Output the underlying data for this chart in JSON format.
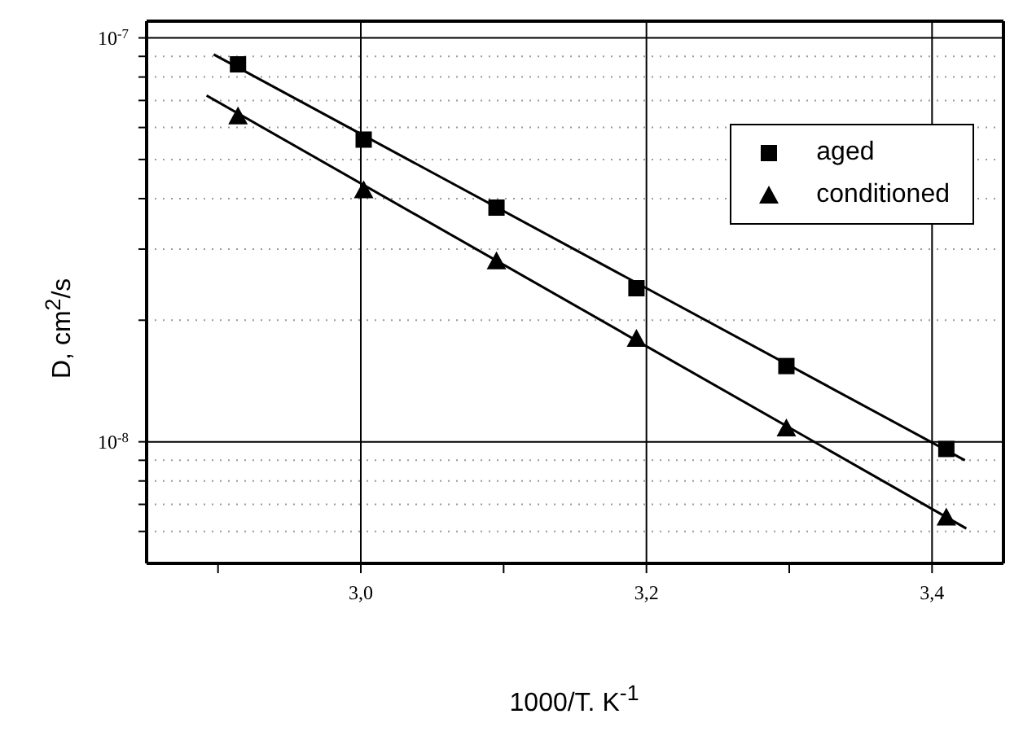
{
  "chart_data": {
    "type": "scatter",
    "xlabel": "1000/T. K$^{-1}$",
    "ylabel": "D, cm$^{2}$/s",
    "xlim": [
      2.85,
      3.45
    ],
    "xticks": [
      {
        "value": 2.9,
        "label": null
      },
      {
        "value": 3.0,
        "label": "3,0"
      },
      {
        "value": 3.1,
        "label": null
      },
      {
        "value": 3.2,
        "label": "3,2"
      },
      {
        "value": 3.3,
        "label": null
      },
      {
        "value": 3.4,
        "label": "3,4"
      }
    ],
    "ylim": [
      5e-09,
      1.1e-07
    ],
    "yticks": [
      {
        "value": 6e-09,
        "label": null
      },
      {
        "value": 7e-09,
        "label": null
      },
      {
        "value": 8e-09,
        "label": null
      },
      {
        "value": 9e-09,
        "label": null
      },
      {
        "value": 1e-08,
        "label": "10$^{-8}$"
      },
      {
        "value": 2e-08,
        "label": null
      },
      {
        "value": 3e-08,
        "label": null
      },
      {
        "value": 4e-08,
        "label": null
      },
      {
        "value": 5e-08,
        "label": null
      },
      {
        "value": 6e-08,
        "label": null
      },
      {
        "value": 7e-08,
        "label": null
      },
      {
        "value": 8e-08,
        "label": null
      },
      {
        "value": 9e-08,
        "label": null
      },
      {
        "value": 1e-07,
        "label": "10$^{-7}$"
      }
    ],
    "log": "y",
    "grid": true,
    "legend": "top right",
    "series": [
      {
        "name": "aged",
        "type": "scatter",
        "marker": "square",
        "color": "#000000",
        "x": [
          2.914,
          3.002,
          3.095,
          3.193,
          3.298,
          3.41
        ],
        "values": [
          8.6e-08,
          5.6e-08,
          3.8e-08,
          2.4e-08,
          1.54e-08,
          9.6e-09
        ]
      },
      {
        "name": "conditioned",
        "type": "scatter",
        "marker": "triangle",
        "color": "#000000",
        "x": [
          2.914,
          3.002,
          3.095,
          3.193,
          3.298,
          3.41
        ],
        "values": [
          6.4e-08,
          4.2e-08,
          2.8e-08,
          1.8e-08,
          1.08e-08,
          6.5e-09
        ]
      },
      {
        "type": "line",
        "marker": "none",
        "line_style": "solid",
        "color": "#000000",
        "x": [
          2.897,
          3.423
        ],
        "values": [
          9.1e-08,
          9e-09
        ]
      },
      {
        "type": "line",
        "marker": "none",
        "line_style": "solid",
        "color": "#000000",
        "x": [
          2.892,
          3.424
        ],
        "values": [
          7.2e-08,
          6.1e-09
        ]
      }
    ]
  }
}
